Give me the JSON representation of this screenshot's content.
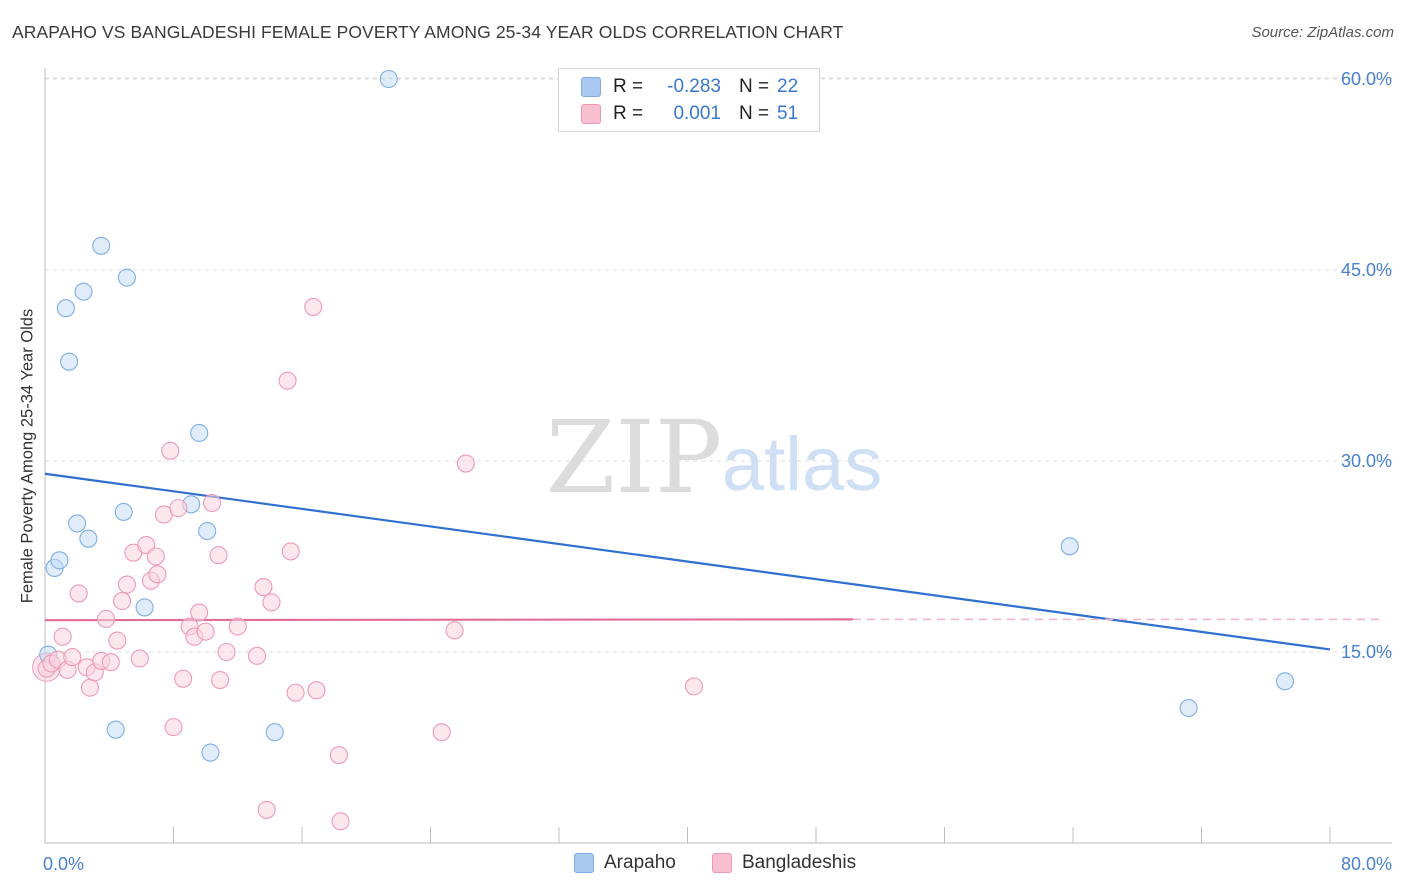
{
  "title": "ARAPAHO VS BANGLADESHI FEMALE POVERTY AMONG 25-34 YEAR OLDS CORRELATION CHART",
  "source": "Source: ZipAtlas.com",
  "watermark": {
    "zip": "ZIP",
    "atlas": "atlas"
  },
  "legend": [
    {
      "r_label": "R =",
      "r_value": "-0.283",
      "n_label": "N =",
      "n_value": "22",
      "color": "#a9c8f0",
      "border": "#7faee6"
    },
    {
      "r_label": "R =",
      "r_value": "0.001",
      "n_label": "N =",
      "n_value": "51",
      "color": "#f7bfd0",
      "border": "#ee9ab5"
    }
  ],
  "bottom_legend": [
    {
      "label": "Arapaho",
      "color": "#a9c8f0",
      "border": "#7faee6"
    },
    {
      "label": "Bangladeshis",
      "color": "#f7bfd0",
      "border": "#ee9ab5"
    }
  ],
  "chart_data": {
    "type": "scatter",
    "title": "ARAPAHO VS BANGLADESHI FEMALE POVERTY AMONG 25-34 YEAR OLDS CORRELATION CHART",
    "xlabel": "",
    "ylabel": "Female Poverty Among 25-34 Year Olds",
    "xlim": [
      0,
      80
    ],
    "ylim": [
      0,
      62
    ],
    "x_tick_labels": [
      "0.0%",
      "80.0%"
    ],
    "y_ticks": [
      15,
      30,
      45,
      60
    ],
    "y_tick_labels": [
      "15.0%",
      "30.0%",
      "45.0%",
      "60.0%"
    ],
    "grid": true,
    "series": [
      {
        "name": "Arapaho",
        "color": "#7faee6",
        "fill": "#c6dcf5",
        "trend": {
          "x": [
            0,
            80
          ],
          "y": [
            29.0,
            15.2
          ],
          "color": "#2f6fd0",
          "dashed_from": null
        },
        "points": [
          [
            0.2,
            14.8
          ],
          [
            0.6,
            21.6
          ],
          [
            0.9,
            22.2
          ],
          [
            1.3,
            42.0
          ],
          [
            1.5,
            37.8
          ],
          [
            2.0,
            25.1
          ],
          [
            2.4,
            43.3
          ],
          [
            2.7,
            23.9
          ],
          [
            3.5,
            46.9
          ],
          [
            4.4,
            8.9
          ],
          [
            4.9,
            26.0
          ],
          [
            5.1,
            44.4
          ],
          [
            6.2,
            18.5
          ],
          [
            9.6,
            32.2
          ],
          [
            9.1,
            26.6
          ],
          [
            10.1,
            24.5
          ],
          [
            10.3,
            7.1
          ],
          [
            14.3,
            8.7
          ],
          [
            21.4,
            60.0
          ],
          [
            63.8,
            23.3
          ],
          [
            71.2,
            10.6
          ],
          [
            77.2,
            12.7
          ]
        ]
      },
      {
        "name": "Bangladeshis",
        "color": "#ee9ab5",
        "fill": "#f9d3df",
        "trend": {
          "x": [
            0,
            80
          ],
          "y": [
            17.5,
            17.6
          ],
          "color": "#e06d93",
          "dashed_from": 50.3
        },
        "points": [
          [
            0.1,
            13.7
          ],
          [
            0.4,
            14.1
          ],
          [
            0.8,
            14.4
          ],
          [
            1.1,
            16.2
          ],
          [
            1.4,
            13.6
          ],
          [
            1.7,
            14.6
          ],
          [
            2.1,
            19.6
          ],
          [
            2.6,
            13.8
          ],
          [
            2.8,
            12.2
          ],
          [
            3.1,
            13.4
          ],
          [
            3.5,
            14.3
          ],
          [
            3.8,
            17.6
          ],
          [
            4.1,
            14.2
          ],
          [
            4.5,
            15.9
          ],
          [
            4.8,
            19.0
          ],
          [
            5.1,
            20.3
          ],
          [
            5.5,
            22.8
          ],
          [
            5.9,
            14.5
          ],
          [
            6.3,
            23.4
          ],
          [
            6.6,
            20.6
          ],
          [
            7.0,
            21.1
          ],
          [
            6.9,
            22.5
          ],
          [
            7.4,
            25.8
          ],
          [
            7.8,
            30.8
          ],
          [
            8.0,
            9.1
          ],
          [
            8.3,
            26.3
          ],
          [
            8.6,
            12.9
          ],
          [
            9.0,
            17.0
          ],
          [
            9.3,
            16.2
          ],
          [
            9.6,
            18.1
          ],
          [
            10.0,
            16.6
          ],
          [
            10.4,
            26.7
          ],
          [
            10.8,
            22.6
          ],
          [
            10.9,
            12.8
          ],
          [
            11.3,
            15.0
          ],
          [
            12.0,
            17.0
          ],
          [
            13.2,
            14.7
          ],
          [
            13.6,
            20.1
          ],
          [
            13.8,
            2.6
          ],
          [
            14.1,
            18.9
          ],
          [
            15.1,
            36.3
          ],
          [
            15.3,
            22.9
          ],
          [
            15.6,
            11.8
          ],
          [
            16.7,
            42.1
          ],
          [
            16.9,
            12.0
          ],
          [
            18.3,
            6.9
          ],
          [
            18.4,
            1.7
          ],
          [
            24.7,
            8.7
          ],
          [
            25.5,
            16.7
          ],
          [
            26.2,
            29.8
          ],
          [
            40.4,
            12.3
          ]
        ]
      }
    ]
  }
}
